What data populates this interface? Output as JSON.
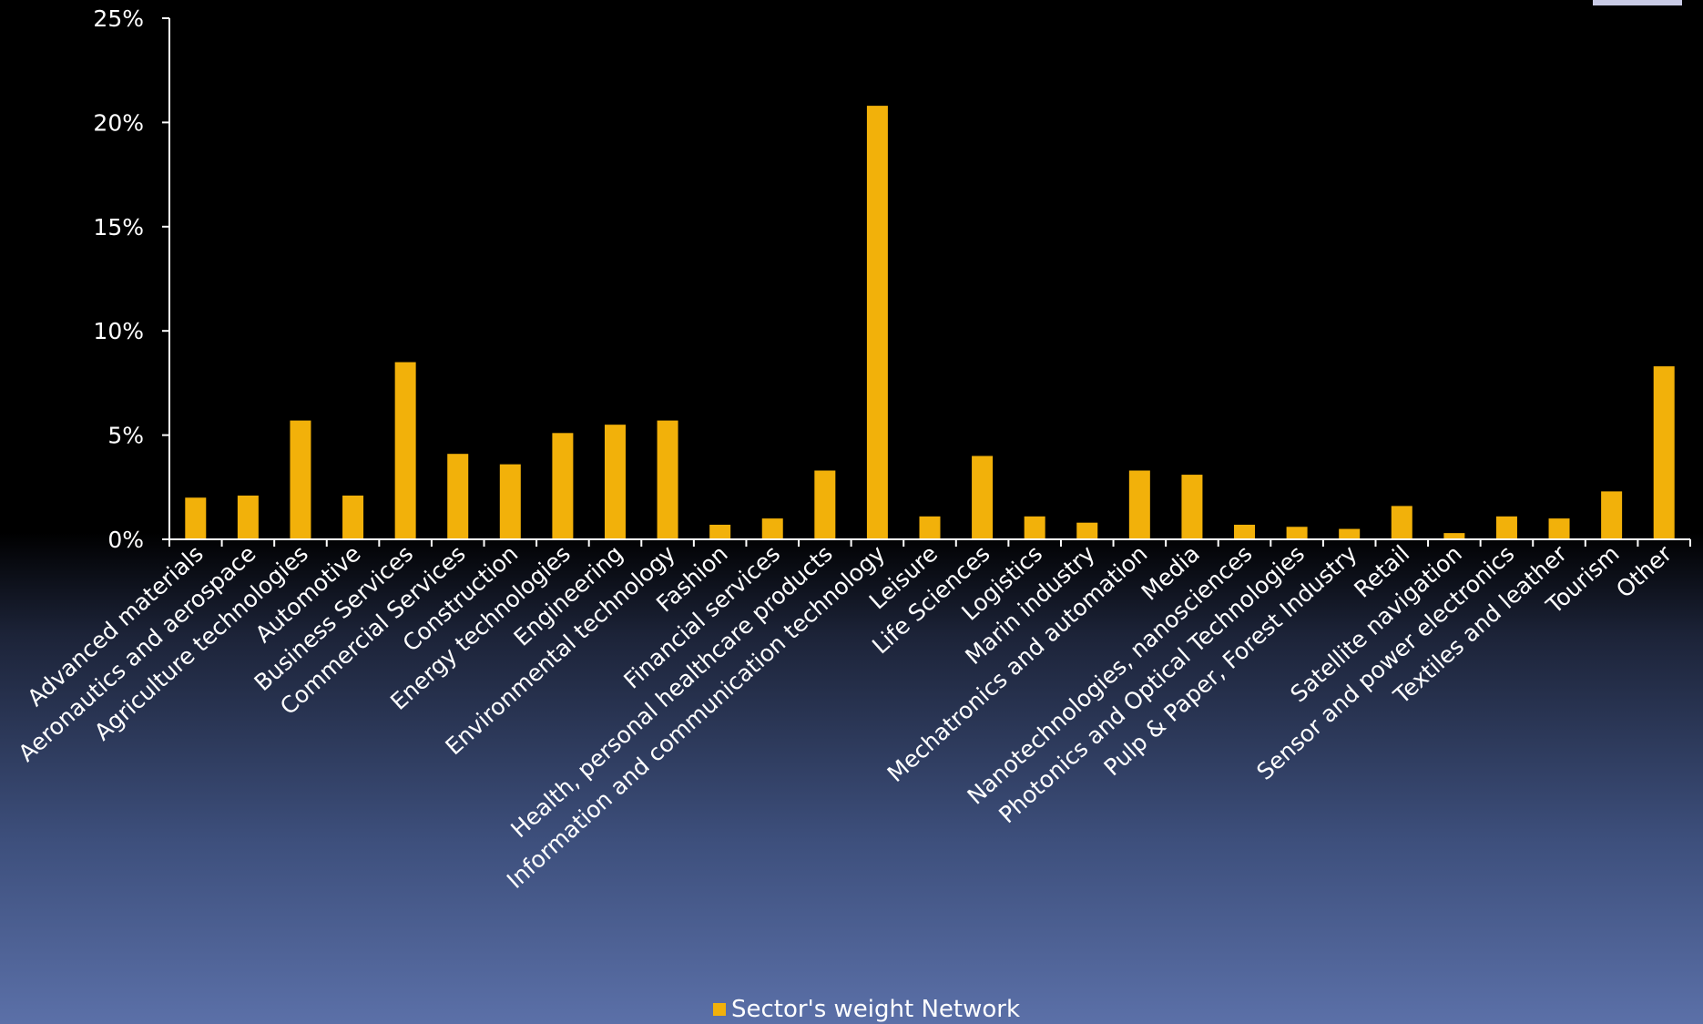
{
  "chart_data": {
    "type": "bar",
    "categories": [
      "Advanced materials",
      "Aeronautics and aerospace",
      "Agriculture technologies",
      "Automotive",
      "Business Services",
      "Commercial Services",
      "Construction",
      "Energy technologies",
      "Engineering",
      "Environmental technology",
      "Fashion",
      "Financial services",
      "Health, personal healthcare products",
      "Information and communication technology",
      "Leisure",
      "Life Sciences",
      "Logistics",
      "Marin industry",
      "Mechatronics and automation",
      "Media",
      "Nanotechnologies, nanosciences",
      "Photonics and Optical Technologies",
      "Pulp & Paper, Forest Industry",
      "Retail",
      "Satellite navigation",
      "Sensor and power electronics",
      "Textiles and leather",
      "Tourism",
      "Other"
    ],
    "series": [
      {
        "name": "Sector's weight Network",
        "values": [
          2.0,
          2.1,
          5.7,
          2.1,
          8.5,
          4.1,
          3.6,
          5.1,
          5.5,
          5.7,
          0.7,
          1.0,
          3.3,
          20.8,
          1.1,
          4.0,
          1.1,
          0.8,
          3.3,
          3.1,
          0.7,
          0.6,
          0.5,
          1.6,
          0.3,
          1.1,
          1.0,
          2.3,
          8.3
        ]
      }
    ],
    "y_ticks": [
      "0%",
      "5%",
      "10%",
      "15%",
      "20%",
      "25%"
    ],
    "ylim": [
      0,
      25
    ],
    "y_unit": "%",
    "grid": false,
    "legend_position": "bottom",
    "colors": {
      "bar": "#f2b10a",
      "axis": "#ffffff",
      "text": "#ffffff"
    }
  }
}
